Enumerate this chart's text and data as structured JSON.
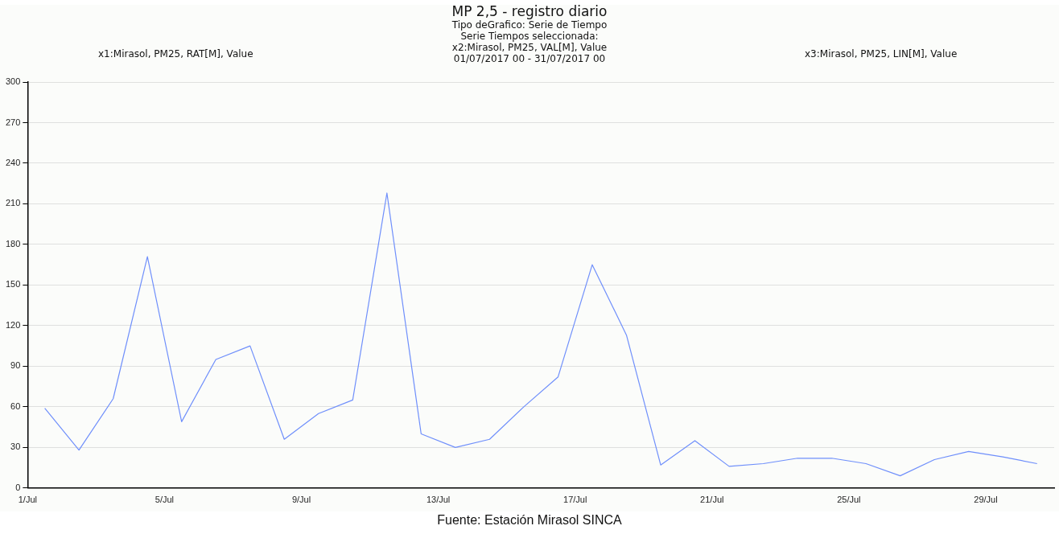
{
  "chart_data": {
    "type": "line",
    "title": "MP 2,5 - registro diario",
    "subtitle": "Tipo deGrafico: Serie de Tiempo\nSerie Tiempos seleccionada:\nx2:Mirasol, PM25, VAL[M], Value\n01/07/2017 00 - 31/07/2017 00",
    "annotations": [
      "x1:Mirasol, PM25, RAT[M], Value",
      "x3:Mirasol, PM25, LIN[M], Value",
      "Fuente: Estación Mirasol SINCA"
    ],
    "x": [
      "2017-07-01T12:00",
      "2017-07-02T12:00",
      "2017-07-03T12:00",
      "2017-07-04T12:00",
      "2017-07-05T12:00",
      "2017-07-06T12:00",
      "2017-07-07T12:00",
      "2017-07-08T12:00",
      "2017-07-09T12:00",
      "2017-07-10T12:00",
      "2017-07-11T12:00",
      "2017-07-12T12:00",
      "2017-07-13T12:00",
      "2017-07-14T12:00",
      "2017-07-15T12:00",
      "2017-07-16T12:00",
      "2017-07-17T12:00",
      "2017-07-18T12:00",
      "2017-07-19T12:00",
      "2017-07-20T12:00",
      "2017-07-21T12:00",
      "2017-07-22T12:00",
      "2017-07-23T12:00",
      "2017-07-24T12:00",
      "2017-07-25T12:00",
      "2017-07-26T12:00",
      "2017-07-27T12:00",
      "2017-07-28T12:00",
      "2017-07-29T12:00",
      "2017-07-30T12:00"
    ],
    "series": [
      {
        "color": "#6f8ffb",
        "values": [
          59,
          28,
          66,
          171,
          49,
          95,
          105,
          36,
          55,
          65,
          218,
          40,
          30,
          36,
          60,
          82,
          165,
          113,
          17,
          35,
          16,
          18,
          22,
          22,
          18,
          9,
          21,
          27,
          23,
          18
        ]
      }
    ],
    "xlim": [
      "2017-07-01",
      "2017-07-31"
    ],
    "xticks": [
      {
        "value": "2017-07-01",
        "label": "1/Jul"
      },
      {
        "value": "2017-07-05",
        "label": "5/Jul"
      },
      {
        "value": "2017-07-09",
        "label": "9/Jul"
      },
      {
        "value": "2017-07-13",
        "label": "13/Jul"
      },
      {
        "value": "2017-07-17",
        "label": "17/Jul"
      },
      {
        "value": "2017-07-21",
        "label": "21/Jul"
      },
      {
        "value": "2017-07-25",
        "label": "25/Jul"
      },
      {
        "value": "2017-07-29",
        "label": "29/Jul"
      }
    ],
    "ylim": [
      0,
      300
    ],
    "yticks": [
      0,
      30,
      60,
      90,
      120,
      150,
      180,
      210,
      240,
      270,
      300
    ],
    "grid": "y",
    "legend": false,
    "marker": "none",
    "line_style": "solid"
  }
}
